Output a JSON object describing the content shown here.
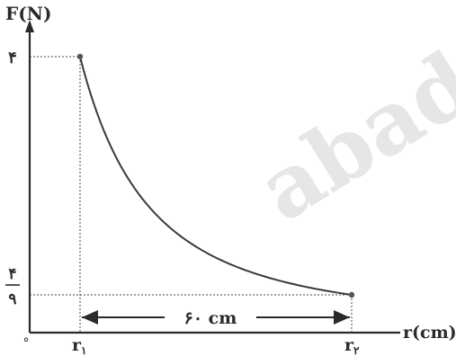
{
  "chart_data": {
    "type": "line",
    "title": "",
    "ylabel": "F(N)",
    "xlabel": "r(cm)",
    "origin_label": "°",
    "y_ticks": [
      {
        "value": 4,
        "label": "۴"
      },
      {
        "value": 0.4444,
        "label_num": "۴",
        "label_den": "۹"
      }
    ],
    "x_ticks": [
      {
        "label": "r",
        "sub": "۱"
      },
      {
        "label": "r",
        "sub": "۲"
      }
    ],
    "start_point": {
      "F": 4
    },
    "end_point": {
      "F": 0.4444
    },
    "dimension": {
      "label": "۶۰ cm"
    },
    "watermark": "abad",
    "colors": {
      "axis": "#2a2a2a",
      "curve": "#3a3a3a",
      "guide": "#444444",
      "watermark": "#e6e6e6"
    }
  }
}
